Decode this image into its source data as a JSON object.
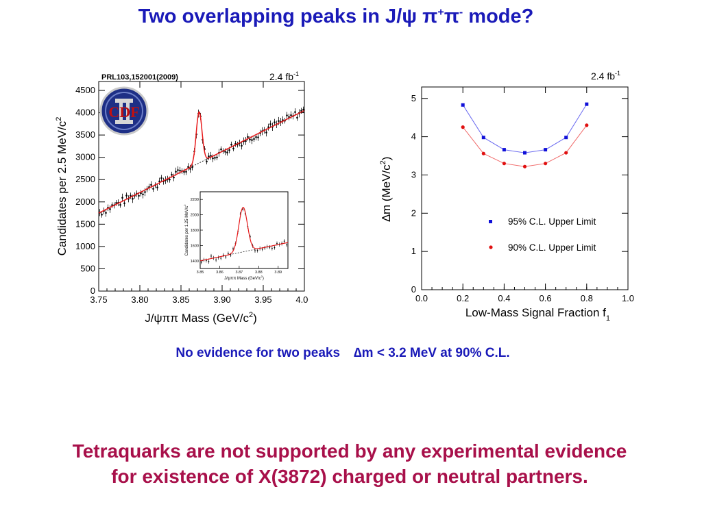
{
  "slide": {
    "title_main": "Two overlapping peaks in J/ψ π",
    "title_plus": "+",
    "title_pi": "π",
    "title_minus": "-",
    "title_end": " mode?",
    "note_left": "No evidence for two peaks",
    "note_right": "∆m < 3.2 MeV at 90% C.L.",
    "conclusion_line1": "Tetraquarks are not supported by any experimental evidence",
    "conclusion_line2": "for existence of X(3872) charged or neutral partners."
  },
  "colors": {
    "title": "#1a1ab8",
    "conclusion": "#a8104a",
    "fit": "#e8191a",
    "series95": "#1010d8",
    "series90": "#e01010"
  },
  "chart_data": [
    {
      "type": "scatter",
      "reference": "PRL103,152001(2009)",
      "lumi": "2.4 fb",
      "lumi_exp": "-1",
      "xlabel": "J/ψππ Mass (GeV/c",
      "xlabel_exp": "2",
      "xlabel_end": ")",
      "ylabel": "Candidates per 2.5 MeV/c",
      "ylabel_exp": "2",
      "xlim": [
        3.75,
        4.0
      ],
      "ylim": [
        0,
        4700
      ],
      "x_ticks": [
        "3.75",
        "3.80",
        "3.85",
        "3.90",
        "3.95",
        "4.00"
      ],
      "y_ticks": [
        "0",
        "500",
        "1000",
        "1500",
        "2000",
        "2500",
        "3000",
        "3500",
        "4000",
        "4500"
      ],
      "logo_text": "CDF",
      "fit": {
        "background_at_xmin": 1750,
        "background_slope": 9200,
        "peak_mass": 3.872,
        "peak_height": 1150,
        "peak_sigma": 0.0035
      },
      "inset": {
        "xlim": [
          3.85,
          3.895
        ],
        "ylim": [
          1300,
          2300
        ],
        "x_ticks": [
          "3.85",
          "3.86",
          "3.87",
          "3.88",
          "3.89"
        ],
        "y_ticks": [
          "1400",
          "1600",
          "1800",
          "2000",
          "2200"
        ],
        "xlabel": "J/ψππ Mass (GeV/c",
        "xlabel_exp": "2",
        "xlabel_end": ")",
        "ylabel": "Candidates per 1.25 MeV/c",
        "ylabel_exp": "2",
        "background_at_xmin": 1400,
        "background_slope": 5300,
        "peak_height": 580,
        "peak_sigma": 0.0022
      }
    },
    {
      "type": "scatter",
      "lumi": "2.4 fb",
      "lumi_exp": "-1",
      "xlabel": "Low-Mass Signal Fraction f",
      "xlabel_sub": "1",
      "ylabel": "∆m (MeV/c",
      "ylabel_exp": "2",
      "ylabel_end": ")",
      "xlim": [
        0.0,
        1.0
      ],
      "ylim": [
        0,
        5.3
      ],
      "x_ticks": [
        "0.0",
        "0.2",
        "0.4",
        "0.6",
        "0.8",
        "1.0"
      ],
      "y_ticks": [
        "0",
        "1",
        "2",
        "3",
        "4",
        "5"
      ],
      "x": [
        0.2,
        0.3,
        0.4,
        0.5,
        0.6,
        0.7,
        0.8
      ],
      "series": [
        {
          "name": "95% C.L. Upper Limit",
          "values": [
            4.83,
            3.98,
            3.66,
            3.58,
            3.66,
            3.98,
            4.85
          ]
        },
        {
          "name": "90% C.L. Upper Limit",
          "values": [
            4.25,
            3.56,
            3.3,
            3.22,
            3.3,
            3.58,
            4.3
          ]
        }
      ],
      "legend": "bottom-right"
    }
  ]
}
